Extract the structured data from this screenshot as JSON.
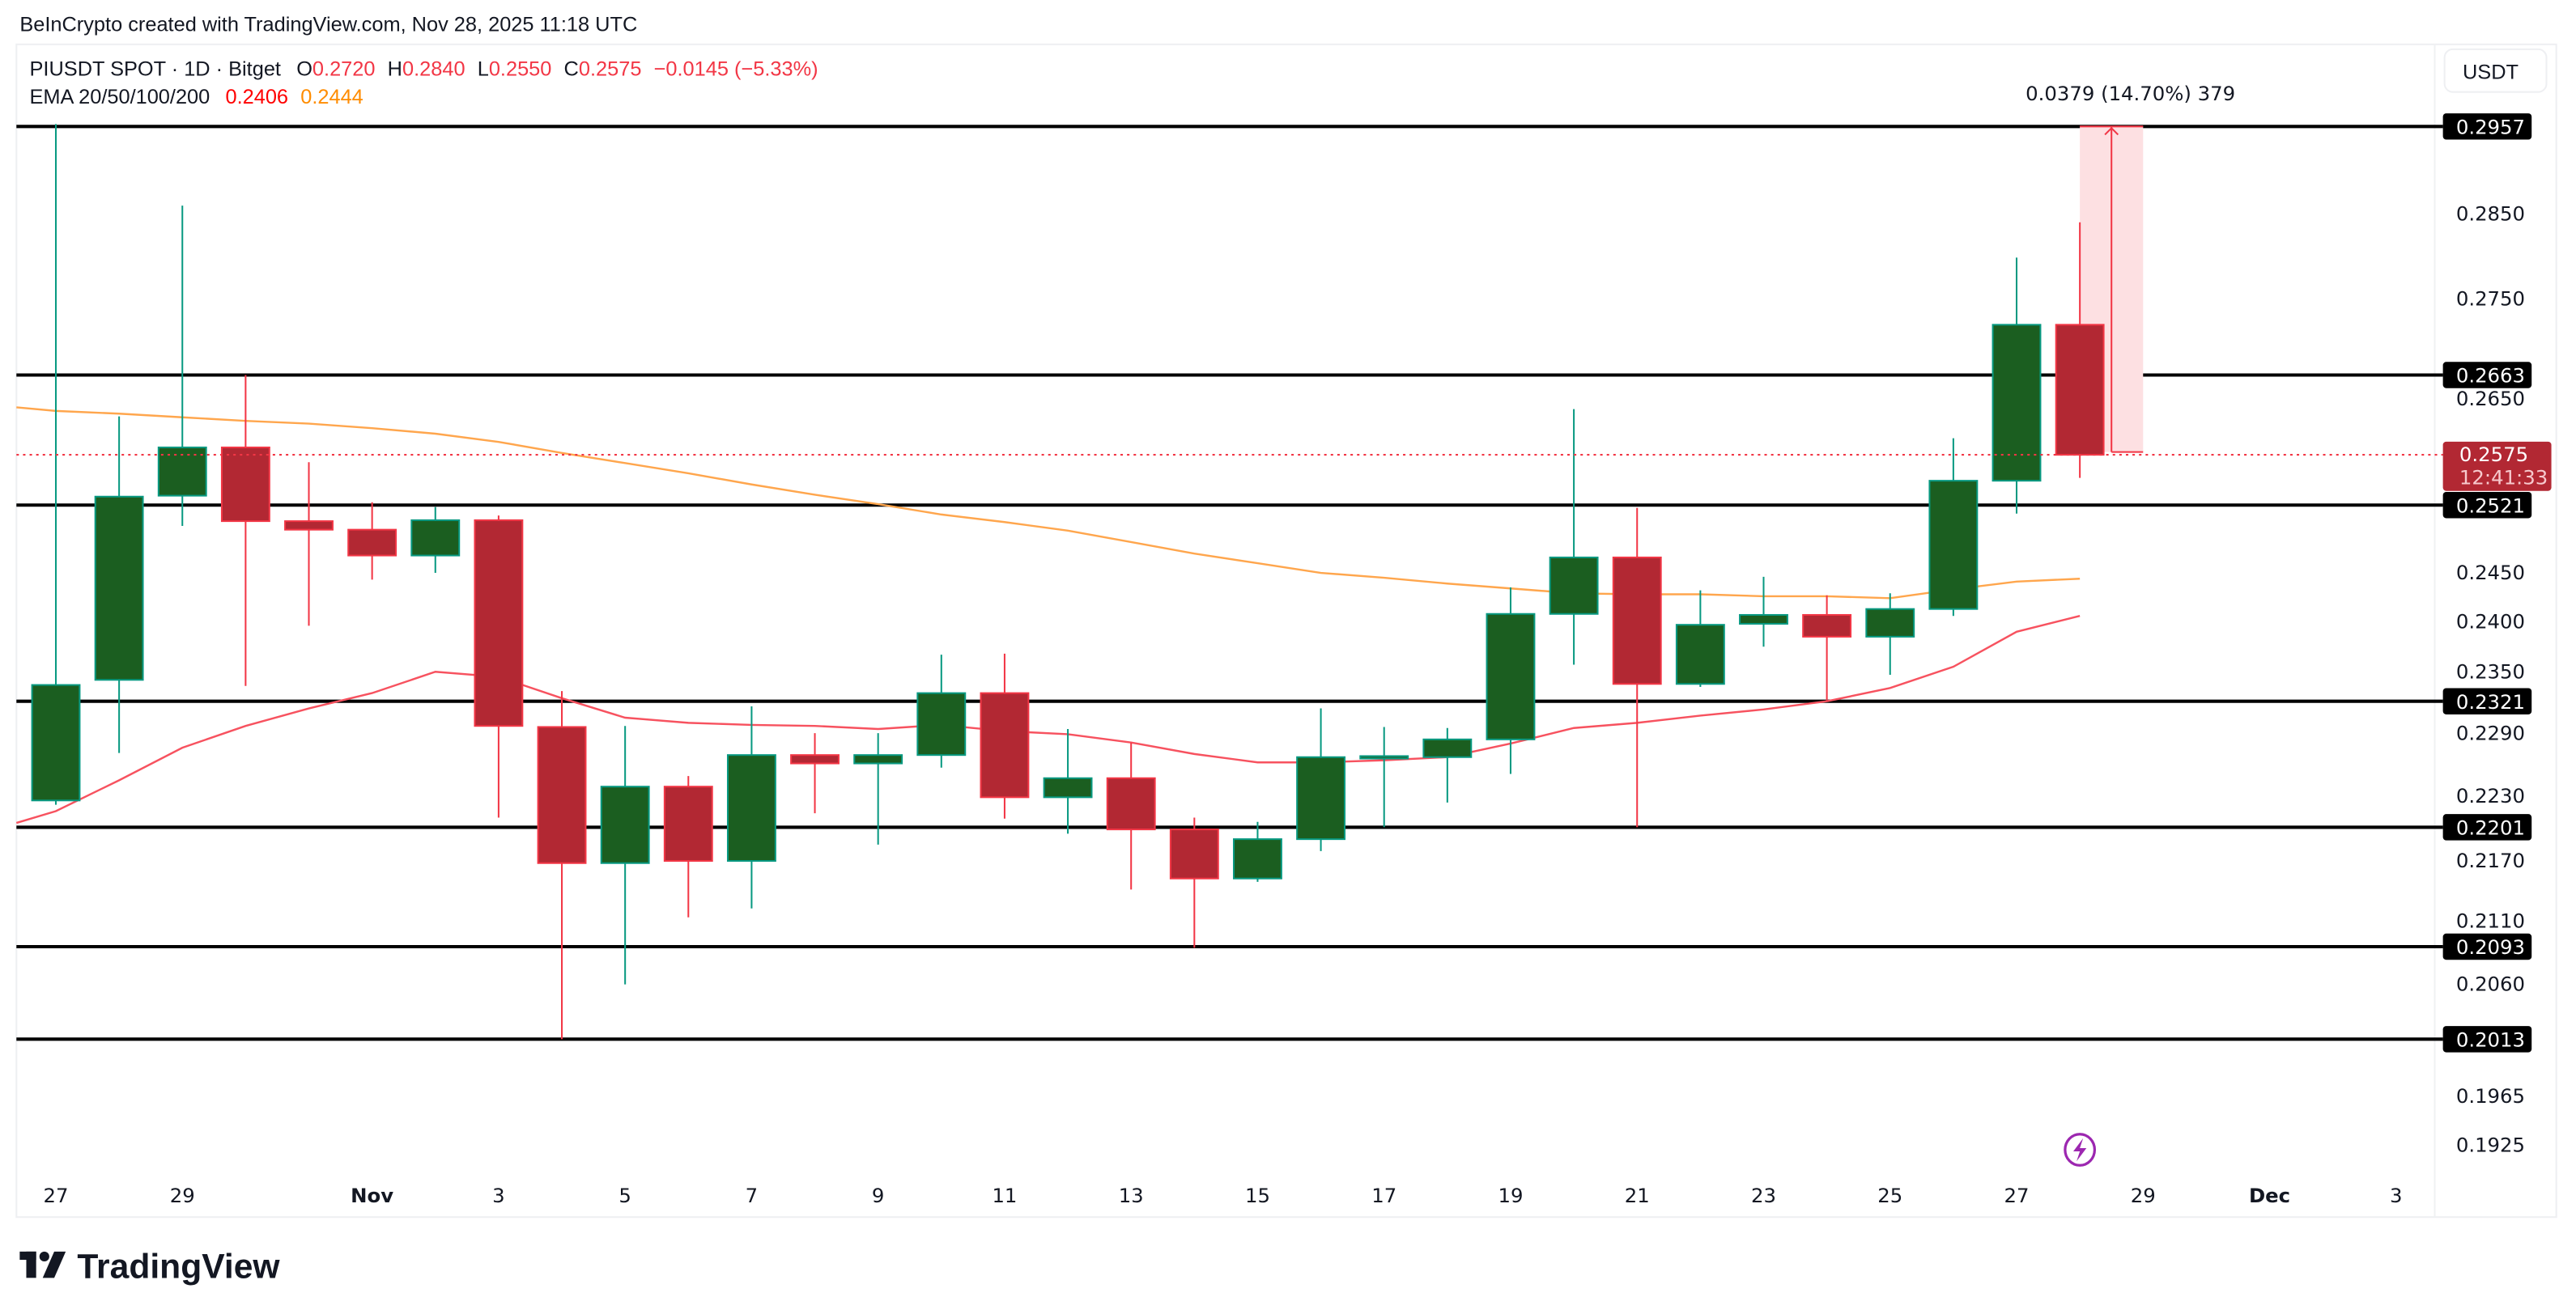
{
  "header": {
    "credit": "BeInCrypto created with TradingView.com, Nov 28, 2025 11:18 UTC"
  },
  "legend": {
    "symbol": "PIUSDT SPOT · 1D · Bitget",
    "o_label": "O",
    "o_value": "0.2720",
    "h_label": "H",
    "h_value": "0.2840",
    "l_label": "L",
    "l_value": "0.2550",
    "c_label": "C",
    "c_value": "0.2575",
    "change": "−0.0145 (−5.33%)",
    "ema_label": "EMA 20/50/100/200",
    "ema20_value": "0.2406",
    "ema50_value": "0.2444"
  },
  "currency_button": "USDT",
  "measure_label": "0.0379 (14.70%) 379",
  "current_price": {
    "value": "0.2575",
    "countdown": "12:41:33"
  },
  "footer": {
    "logo_text": "TradingView"
  },
  "colors": {
    "up_fill": "#1b5e20",
    "up_border": "#089981",
    "down_fill": "#b22833",
    "down_border": "#f23645",
    "ema20": "#f7525f",
    "ema50": "#ffa64d",
    "levels": "#000000",
    "measure_fill": "#fde0e2",
    "lightning": "#9c27b0"
  },
  "chart_data": {
    "type": "candlestick",
    "scale": "log",
    "ylim": [
      0.1905,
      0.301
    ],
    "grid": false,
    "x_tick_labels": [
      "27",
      "29",
      "Nov",
      "3",
      "5",
      "7",
      "9",
      "11",
      "13",
      "15",
      "17",
      "19",
      "21",
      "23",
      "25",
      "27",
      "29",
      "Dec",
      "3"
    ],
    "y_tick_labels": [
      "0.2850",
      "0.2750",
      "0.2650",
      "0.2450",
      "0.2400",
      "0.2350",
      "0.2290",
      "0.2230",
      "0.2170",
      "0.2110",
      "0.2060",
      "0.1965",
      "0.1925"
    ],
    "horizontal_levels": [
      "0.2957",
      "0.2663",
      "0.2521",
      "0.2321",
      "0.2201",
      "0.2093",
      "0.2013"
    ],
    "candles": [
      {
        "date": "Oct 27",
        "o": 0.2226,
        "h": 0.296,
        "l": 0.2222,
        "c": 0.2337
      },
      {
        "date": "Oct 28",
        "o": 0.2342,
        "h": 0.2617,
        "l": 0.2271,
        "c": 0.253
      },
      {
        "date": "Oct 29",
        "o": 0.2531,
        "h": 0.286,
        "l": 0.2499,
        "c": 0.2583
      },
      {
        "date": "Oct 30",
        "o": 0.2583,
        "h": 0.2663,
        "l": 0.2336,
        "c": 0.2504
      },
      {
        "date": "Oct 31",
        "o": 0.2504,
        "h": 0.2567,
        "l": 0.2396,
        "c": 0.2495
      },
      {
        "date": "Nov 1",
        "o": 0.2495,
        "h": 0.2524,
        "l": 0.2443,
        "c": 0.2468
      },
      {
        "date": "Nov 2",
        "o": 0.2468,
        "h": 0.2519,
        "l": 0.245,
        "c": 0.2505
      },
      {
        "date": "Nov 3",
        "o": 0.2505,
        "h": 0.251,
        "l": 0.221,
        "c": 0.2297
      },
      {
        "date": "Nov 4",
        "o": 0.2296,
        "h": 0.2331,
        "l": 0.2013,
        "c": 0.2168
      },
      {
        "date": "Nov 5",
        "o": 0.2168,
        "h": 0.2297,
        "l": 0.206,
        "c": 0.2239
      },
      {
        "date": "Nov 6",
        "o": 0.2239,
        "h": 0.2249,
        "l": 0.2119,
        "c": 0.217
      },
      {
        "date": "Nov 7",
        "o": 0.217,
        "h": 0.2316,
        "l": 0.2127,
        "c": 0.2269
      },
      {
        "date": "Nov 8",
        "o": 0.2269,
        "h": 0.229,
        "l": 0.2214,
        "c": 0.2261
      },
      {
        "date": "Nov 9",
        "o": 0.2261,
        "h": 0.229,
        "l": 0.2185,
        "c": 0.2269
      },
      {
        "date": "Nov 10",
        "o": 0.2269,
        "h": 0.2367,
        "l": 0.2257,
        "c": 0.2329
      },
      {
        "date": "Nov 11",
        "o": 0.2329,
        "h": 0.2368,
        "l": 0.2209,
        "c": 0.2229
      },
      {
        "date": "Nov 12",
        "o": 0.2229,
        "h": 0.2294,
        "l": 0.2195,
        "c": 0.2247
      },
      {
        "date": "Nov 13",
        "o": 0.2247,
        "h": 0.2281,
        "l": 0.2144,
        "c": 0.2199
      },
      {
        "date": "Nov 14",
        "o": 0.2199,
        "h": 0.221,
        "l": 0.2092,
        "c": 0.2154
      },
      {
        "date": "Nov 15",
        "o": 0.2154,
        "h": 0.2206,
        "l": 0.2151,
        "c": 0.219
      },
      {
        "date": "Nov 16",
        "o": 0.219,
        "h": 0.2314,
        "l": 0.2179,
        "c": 0.2267
      },
      {
        "date": "Nov 17",
        "o": 0.2267,
        "h": 0.2296,
        "l": 0.2201,
        "c": 0.2268
      },
      {
        "date": "Nov 18",
        "o": 0.2267,
        "h": 0.2295,
        "l": 0.2224,
        "c": 0.2284
      },
      {
        "date": "Nov 19",
        "o": 0.2284,
        "h": 0.2435,
        "l": 0.2251,
        "c": 0.2408
      },
      {
        "date": "Nov 20",
        "o": 0.2408,
        "h": 0.2625,
        "l": 0.2357,
        "c": 0.2466
      },
      {
        "date": "Nov 21",
        "o": 0.2466,
        "h": 0.2518,
        "l": 0.2201,
        "c": 0.2338
      },
      {
        "date": "Nov 22",
        "o": 0.2338,
        "h": 0.2432,
        "l": 0.2335,
        "c": 0.2397
      },
      {
        "date": "Nov 23",
        "o": 0.2398,
        "h": 0.2446,
        "l": 0.2375,
        "c": 0.2407
      },
      {
        "date": "Nov 24",
        "o": 0.2407,
        "h": 0.2427,
        "l": 0.2321,
        "c": 0.2385
      },
      {
        "date": "Nov 25",
        "o": 0.2385,
        "h": 0.2429,
        "l": 0.2347,
        "c": 0.2413
      },
      {
        "date": "Nov 26",
        "o": 0.2413,
        "h": 0.2593,
        "l": 0.2406,
        "c": 0.2547
      },
      {
        "date": "Nov 27",
        "o": 0.2547,
        "h": 0.2798,
        "l": 0.2512,
        "c": 0.272
      },
      {
        "date": "Nov 28",
        "o": 0.272,
        "h": 0.284,
        "l": 0.255,
        "c": 0.2575
      }
    ],
    "series": [
      {
        "name": "EMA 20",
        "values": [
          0.2216,
          0.2245,
          0.2276,
          0.2297,
          0.2314,
          0.2329,
          0.235,
          0.2345,
          0.2324,
          0.2305,
          0.23,
          0.2298,
          0.2297,
          0.2294,
          0.2298,
          0.2292,
          0.2289,
          0.2281,
          0.227,
          0.2262,
          0.2262,
          0.2264,
          0.2267,
          0.228,
          0.2295,
          0.23,
          0.2307,
          0.2313,
          0.2321,
          0.2334,
          0.2355,
          0.239,
          0.2406
        ]
      },
      {
        "name": "EMA 50",
        "values": [
          0.2623,
          0.262,
          0.2616,
          0.2612,
          0.2609,
          0.2604,
          0.2598,
          0.2589,
          0.2577,
          0.2566,
          0.2555,
          0.2543,
          0.2532,
          0.2522,
          0.2511,
          0.2503,
          0.2494,
          0.2482,
          0.247,
          0.246,
          0.245,
          0.2445,
          0.2439,
          0.2434,
          0.2429,
          0.2428,
          0.2428,
          0.2426,
          0.2426,
          0.2424,
          0.2433,
          0.2441,
          0.2444
        ]
      }
    ],
    "measure": {
      "from": 0.2578,
      "to": 0.2957,
      "start": "Nov 28",
      "end": "Nov 29"
    }
  }
}
